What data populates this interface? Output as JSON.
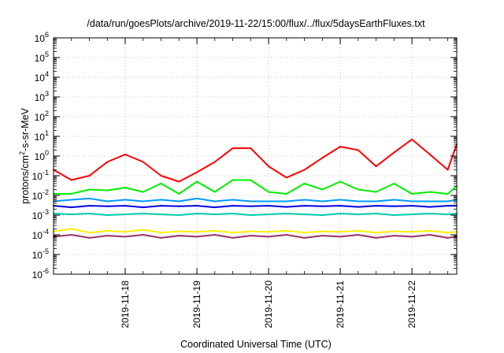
{
  "chart_data": {
    "type": "line",
    "title": "/data/run/goesPlots/archive/2019-11-22/15:00/flux/../flux/5daysEarthFluxes.txt",
    "xlabel": "Coordinated Universal Time (UTC)",
    "ylabel_parts": [
      "protons/cm",
      "2",
      "-s-sr-MeV"
    ],
    "y_scale": "log",
    "ylim": [
      1e-06,
      1000000.0
    ],
    "y_ticks": [
      {
        "base": "10",
        "exp": "-6",
        "value": 1e-06
      },
      {
        "base": "10",
        "exp": "-5",
        "value": 1e-05
      },
      {
        "base": "10",
        "exp": "-4",
        "value": 0.0001
      },
      {
        "base": "10",
        "exp": "-3",
        "value": 0.001
      },
      {
        "base": "10",
        "exp": "-2",
        "value": 0.01
      },
      {
        "base": "10",
        "exp": "-1",
        "value": 0.1
      },
      {
        "base": "10",
        "exp": "0",
        "value": 1
      },
      {
        "base": "10",
        "exp": "1",
        "value": 10
      },
      {
        "base": "10",
        "exp": "2",
        "value": 100
      },
      {
        "base": "10",
        "exp": "3",
        "value": 1000
      },
      {
        "base": "10",
        "exp": "4",
        "value": 10000
      },
      {
        "base": "10",
        "exp": "5",
        "value": 100000
      },
      {
        "base": "10",
        "exp": "6",
        "value": 1000000
      }
    ],
    "xlim": [
      "2019-11-17T00:00Z",
      "2019-11-22T15:00Z"
    ],
    "x_ticks": [
      {
        "label": "2019-11-18",
        "value": "2019-11-18T00:00Z"
      },
      {
        "label": "2019-11-19",
        "value": "2019-11-19T00:00Z"
      },
      {
        "label": "2019-11-20",
        "value": "2019-11-20T00:00Z"
      },
      {
        "label": "2019-11-21",
        "value": "2019-11-21T00:00Z"
      },
      {
        "label": "2019-11-22",
        "value": "2019-11-22T00:00Z"
      }
    ],
    "grid": true,
    "legend": "none",
    "series": [
      {
        "color": "#ff0000",
        "x": [
          "2019-11-17T00:00Z",
          "2019-11-17T06:00Z",
          "2019-11-17T12:00Z",
          "2019-11-17T18:00Z",
          "2019-11-18T00:00Z",
          "2019-11-18T06:00Z",
          "2019-11-18T12:00Z",
          "2019-11-18T18:00Z",
          "2019-11-19T00:00Z",
          "2019-11-19T06:00Z",
          "2019-11-19T12:00Z",
          "2019-11-19T18:00Z",
          "2019-11-20T00:00Z",
          "2019-11-20T06:00Z",
          "2019-11-20T12:00Z",
          "2019-11-20T18:00Z",
          "2019-11-21T00:00Z",
          "2019-11-21T06:00Z",
          "2019-11-21T12:00Z",
          "2019-11-21T18:00Z",
          "2019-11-22T00:00Z",
          "2019-11-22T06:00Z",
          "2019-11-22T12:00Z",
          "2019-11-22T15:00Z"
        ],
        "values": [
          0.2,
          0.06,
          0.1,
          0.5,
          1.2,
          0.5,
          0.1,
          0.05,
          0.15,
          0.5,
          2.5,
          2.5,
          0.3,
          0.08,
          0.2,
          0.8,
          3,
          2,
          0.3,
          1.5,
          7,
          1.2,
          0.2,
          4
        ]
      },
      {
        "color": "#00ee00",
        "x": [
          "2019-11-17T00:00Z",
          "2019-11-17T06:00Z",
          "2019-11-17T12:00Z",
          "2019-11-17T18:00Z",
          "2019-11-18T00:00Z",
          "2019-11-18T06:00Z",
          "2019-11-18T12:00Z",
          "2019-11-18T18:00Z",
          "2019-11-19T00:00Z",
          "2019-11-19T06:00Z",
          "2019-11-19T12:00Z",
          "2019-11-19T18:00Z",
          "2019-11-20T00:00Z",
          "2019-11-20T06:00Z",
          "2019-11-20T12:00Z",
          "2019-11-20T18:00Z",
          "2019-11-21T00:00Z",
          "2019-11-21T06:00Z",
          "2019-11-21T12:00Z",
          "2019-11-21T18:00Z",
          "2019-11-22T00:00Z",
          "2019-11-22T06:00Z",
          "2019-11-22T12:00Z",
          "2019-11-22T15:00Z"
        ],
        "values": [
          0.012,
          0.012,
          0.02,
          0.018,
          0.025,
          0.015,
          0.04,
          0.012,
          0.05,
          0.015,
          0.06,
          0.06,
          0.015,
          0.012,
          0.04,
          0.02,
          0.05,
          0.02,
          0.015,
          0.04,
          0.012,
          0.015,
          0.012,
          0.03
        ]
      },
      {
        "color": "#0099ff",
        "x": [
          "2019-11-17T00:00Z",
          "2019-11-17T06:00Z",
          "2019-11-17T12:00Z",
          "2019-11-17T18:00Z",
          "2019-11-18T00:00Z",
          "2019-11-18T06:00Z",
          "2019-11-18T12:00Z",
          "2019-11-18T18:00Z",
          "2019-11-19T00:00Z",
          "2019-11-19T06:00Z",
          "2019-11-19T12:00Z",
          "2019-11-19T18:00Z",
          "2019-11-20T00:00Z",
          "2019-11-20T06:00Z",
          "2019-11-20T12:00Z",
          "2019-11-20T18:00Z",
          "2019-11-21T00:00Z",
          "2019-11-21T06:00Z",
          "2019-11-21T12:00Z",
          "2019-11-21T18:00Z",
          "2019-11-22T00:00Z",
          "2019-11-22T06:00Z",
          "2019-11-22T12:00Z",
          "2019-11-22T15:00Z"
        ],
        "values": [
          0.005,
          0.006,
          0.007,
          0.005,
          0.006,
          0.005,
          0.006,
          0.005,
          0.007,
          0.005,
          0.006,
          0.005,
          0.005,
          0.005,
          0.006,
          0.005,
          0.006,
          0.005,
          0.005,
          0.006,
          0.005,
          0.005,
          0.005,
          0.006
        ]
      },
      {
        "color": "#0000dd",
        "x": [
          "2019-11-17T00:00Z",
          "2019-11-17T06:00Z",
          "2019-11-17T12:00Z",
          "2019-11-17T18:00Z",
          "2019-11-18T00:00Z",
          "2019-11-18T06:00Z",
          "2019-11-18T12:00Z",
          "2019-11-18T18:00Z",
          "2019-11-19T00:00Z",
          "2019-11-19T06:00Z",
          "2019-11-19T12:00Z",
          "2019-11-19T18:00Z",
          "2019-11-20T00:00Z",
          "2019-11-20T06:00Z",
          "2019-11-20T12:00Z",
          "2019-11-20T18:00Z",
          "2019-11-21T00:00Z",
          "2019-11-21T06:00Z",
          "2019-11-21T12:00Z",
          "2019-11-21T18:00Z",
          "2019-11-22T00:00Z",
          "2019-11-22T06:00Z",
          "2019-11-22T12:00Z",
          "2019-11-22T15:00Z"
        ],
        "values": [
          0.003,
          0.0025,
          0.003,
          0.0028,
          0.003,
          0.0025,
          0.003,
          0.0028,
          0.003,
          0.0025,
          0.003,
          0.0028,
          0.003,
          0.0026,
          0.003,
          0.0028,
          0.003,
          0.0026,
          0.003,
          0.0028,
          0.003,
          0.0026,
          0.003,
          0.003
        ]
      },
      {
        "color": "#00ccaa",
        "x": [
          "2019-11-17T00:00Z",
          "2019-11-17T06:00Z",
          "2019-11-17T12:00Z",
          "2019-11-17T18:00Z",
          "2019-11-18T00:00Z",
          "2019-11-18T06:00Z",
          "2019-11-18T12:00Z",
          "2019-11-18T18:00Z",
          "2019-11-19T00:00Z",
          "2019-11-19T06:00Z",
          "2019-11-19T12:00Z",
          "2019-11-19T18:00Z",
          "2019-11-20T00:00Z",
          "2019-11-20T06:00Z",
          "2019-11-20T12:00Z",
          "2019-11-20T18:00Z",
          "2019-11-21T00:00Z",
          "2019-11-21T06:00Z",
          "2019-11-21T12:00Z",
          "2019-11-21T18:00Z",
          "2019-11-22T00:00Z",
          "2019-11-22T06:00Z",
          "2019-11-22T12:00Z",
          "2019-11-22T15:00Z"
        ],
        "values": [
          0.0012,
          0.0011,
          0.0012,
          0.001,
          0.0011,
          0.0012,
          0.0011,
          0.001,
          0.0012,
          0.0011,
          0.0012,
          0.001,
          0.0011,
          0.0012,
          0.0011,
          0.001,
          0.0012,
          0.0011,
          0.0012,
          0.001,
          0.0011,
          0.0012,
          0.0011,
          0.0012
        ]
      },
      {
        "color": "#ffee00",
        "x": [
          "2019-11-17T00:00Z",
          "2019-11-17T06:00Z",
          "2019-11-17T12:00Z",
          "2019-11-17T18:00Z",
          "2019-11-18T00:00Z",
          "2019-11-18T06:00Z",
          "2019-11-18T12:00Z",
          "2019-11-18T18:00Z",
          "2019-11-19T00:00Z",
          "2019-11-19T06:00Z",
          "2019-11-19T12:00Z",
          "2019-11-19T18:00Z",
          "2019-11-20T00:00Z",
          "2019-11-20T06:00Z",
          "2019-11-20T12:00Z",
          "2019-11-20T18:00Z",
          "2019-11-21T00:00Z",
          "2019-11-21T06:00Z",
          "2019-11-21T12:00Z",
          "2019-11-21T18:00Z",
          "2019-11-22T00:00Z",
          "2019-11-22T06:00Z",
          "2019-11-22T12:00Z",
          "2019-11-22T15:00Z"
        ],
        "values": [
          0.00015,
          0.0002,
          0.00013,
          0.00016,
          0.00014,
          0.00018,
          0.00013,
          0.00015,
          0.00014,
          0.00016,
          0.00013,
          0.00015,
          0.00014,
          0.00016,
          0.00013,
          0.00015,
          0.00014,
          0.00016,
          0.00013,
          0.00015,
          0.00014,
          0.00016,
          0.00013,
          0.00014
        ]
      },
      {
        "color": "#993366",
        "x": [
          "2019-11-17T00:00Z",
          "2019-11-17T06:00Z",
          "2019-11-17T12:00Z",
          "2019-11-17T18:00Z",
          "2019-11-18T00:00Z",
          "2019-11-18T06:00Z",
          "2019-11-18T12:00Z",
          "2019-11-18T18:00Z",
          "2019-11-19T00:00Z",
          "2019-11-19T06:00Z",
          "2019-11-19T12:00Z",
          "2019-11-19T18:00Z",
          "2019-11-20T00:00Z",
          "2019-11-20T06:00Z",
          "2019-11-20T12:00Z",
          "2019-11-20T18:00Z",
          "2019-11-21T00:00Z",
          "2019-11-21T06:00Z",
          "2019-11-21T12:00Z",
          "2019-11-21T18:00Z",
          "2019-11-22T00:00Z",
          "2019-11-22T06:00Z",
          "2019-11-22T12:00Z",
          "2019-11-22T15:00Z"
        ],
        "values": [
          8e-05,
          0.0001,
          7e-05,
          9e-05,
          8e-05,
          0.0001,
          7e-05,
          9e-05,
          8e-05,
          0.0001,
          7e-05,
          9e-05,
          8e-05,
          0.0001,
          7e-05,
          9e-05,
          8e-05,
          0.0001,
          7e-05,
          9e-05,
          8e-05,
          0.0001,
          7e-05,
          8e-05
        ]
      }
    ]
  }
}
